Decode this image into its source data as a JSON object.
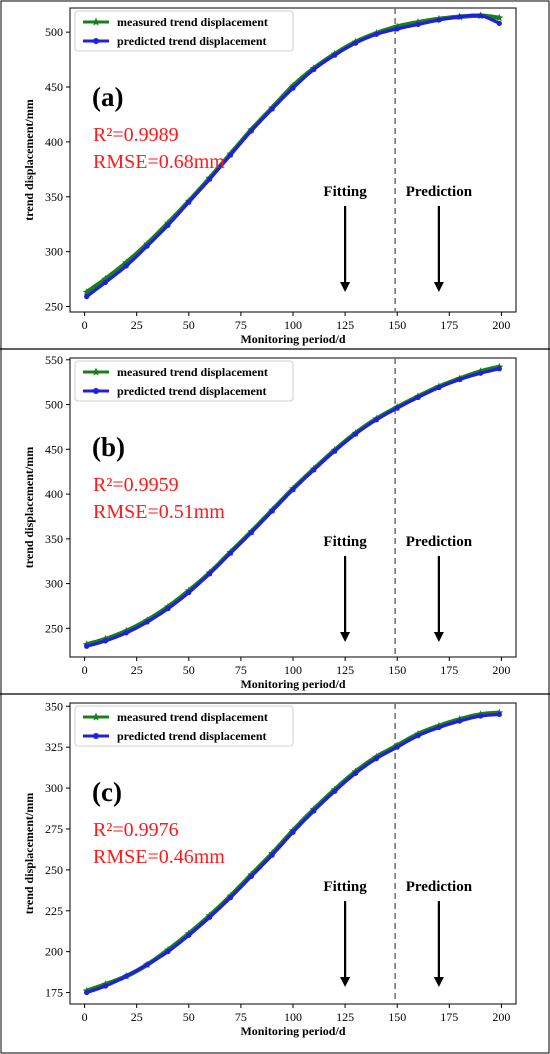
{
  "figure": {
    "panels": [
      {
        "letter": "(a)",
        "r2": "R²=0.9989",
        "rmse": "RMSE=0.68mm",
        "fitting_label": "Fitting",
        "prediction_label": "Prediction"
      },
      {
        "letter": "(b)",
        "r2": "R²=0.9959",
        "rmse": "RMSE=0.51mm",
        "fitting_label": "Fitting",
        "prediction_label": "Prediction"
      },
      {
        "letter": "(c)",
        "r2": "R²=0.9976",
        "rmse": "RMSE=0.46mm",
        "fitting_label": "Fitting",
        "prediction_label": "Prediction"
      }
    ]
  },
  "chart_data": [
    {
      "type": "line",
      "xlabel": "Monitoring period/d",
      "ylabel": "trend displacement/mm",
      "xlim": [
        -7,
        207
      ],
      "ylim": [
        245,
        522
      ],
      "xticks": [
        0,
        25,
        50,
        75,
        100,
        125,
        150,
        175,
        200
      ],
      "yticks": [
        250,
        300,
        350,
        400,
        450,
        500
      ],
      "split_x": 149,
      "fitting_arrow_x": 125,
      "prediction_arrow_x": 170,
      "legend_position": "top-left",
      "series": [
        {
          "name": "measured trend displacement",
          "color": "#1a7f1a",
          "marker": "star",
          "x": [
            1,
            10,
            20,
            30,
            40,
            50,
            60,
            70,
            80,
            90,
            100,
            110,
            120,
            130,
            140,
            150,
            160,
            170,
            180,
            190,
            199
          ],
          "values": [
            263,
            275,
            290,
            307,
            326,
            346,
            367,
            389,
            411,
            431,
            451,
            467,
            480,
            491,
            499,
            505,
            509,
            512,
            514,
            515,
            513
          ]
        },
        {
          "name": "predicted trend displacement",
          "color": "#1f1fdd",
          "marker": "dot",
          "x": [
            1,
            10,
            20,
            30,
            40,
            50,
            60,
            70,
            80,
            90,
            100,
            110,
            120,
            130,
            140,
            150,
            160,
            170,
            180,
            190,
            199
          ],
          "values": [
            259,
            272,
            287,
            305,
            324,
            345,
            366,
            388,
            410,
            430,
            449,
            466,
            479,
            490,
            498,
            503,
            507,
            511,
            514,
            515,
            508
          ]
        }
      ]
    },
    {
      "type": "line",
      "xlabel": "Monitoring period/d",
      "ylabel": "trend displacement/mm",
      "xlim": [
        -7,
        207
      ],
      "ylim": [
        218,
        552
      ],
      "xticks": [
        0,
        25,
        50,
        75,
        100,
        125,
        150,
        175,
        200
      ],
      "yticks": [
        250,
        300,
        350,
        400,
        450,
        500,
        550
      ],
      "split_x": 149,
      "fitting_arrow_x": 125,
      "prediction_arrow_x": 170,
      "legend_position": "top-left",
      "series": [
        {
          "name": "measured trend displacement",
          "color": "#1a7f1a",
          "marker": "star",
          "x": [
            1,
            10,
            20,
            30,
            40,
            50,
            60,
            70,
            80,
            90,
            100,
            110,
            120,
            130,
            140,
            150,
            160,
            170,
            180,
            190,
            199
          ],
          "values": [
            232,
            238,
            247,
            259,
            274,
            292,
            312,
            335,
            358,
            382,
            406,
            428,
            449,
            468,
            484,
            497,
            509,
            520,
            529,
            537,
            542
          ]
        },
        {
          "name": "predicted trend displacement",
          "color": "#1f1fdd",
          "marker": "dot",
          "x": [
            1,
            10,
            20,
            30,
            40,
            50,
            60,
            70,
            80,
            90,
            100,
            110,
            120,
            130,
            140,
            150,
            160,
            170,
            180,
            190,
            199
          ],
          "values": [
            230,
            236,
            245,
            257,
            272,
            290,
            311,
            334,
            357,
            381,
            405,
            427,
            448,
            467,
            483,
            496,
            508,
            519,
            528,
            535,
            540
          ]
        }
      ]
    },
    {
      "type": "line",
      "xlabel": "Monitoring period/d",
      "ylabel": "trend displacement/mm",
      "xlim": [
        -7,
        207
      ],
      "ylim": [
        168,
        352
      ],
      "xticks": [
        0,
        25,
        50,
        75,
        100,
        125,
        150,
        175,
        200
      ],
      "yticks": [
        175,
        200,
        225,
        250,
        275,
        300,
        325,
        350
      ],
      "split_x": 149,
      "fitting_arrow_x": 125,
      "prediction_arrow_x": 170,
      "legend_position": "top-left",
      "series": [
        {
          "name": "measured trend displacement",
          "color": "#1a7f1a",
          "marker": "star",
          "x": [
            1,
            10,
            20,
            30,
            40,
            50,
            60,
            70,
            80,
            90,
            100,
            110,
            120,
            130,
            140,
            150,
            160,
            170,
            180,
            190,
            199
          ],
          "values": [
            176,
            180,
            185,
            192,
            201,
            211,
            222,
            234,
            247,
            260,
            274,
            287,
            299,
            310,
            319,
            326,
            333,
            338,
            342,
            345,
            346
          ]
        },
        {
          "name": "predicted trend displacement",
          "color": "#1f1fdd",
          "marker": "dot",
          "x": [
            1,
            10,
            20,
            30,
            40,
            50,
            60,
            70,
            80,
            90,
            100,
            110,
            120,
            130,
            140,
            150,
            160,
            170,
            180,
            190,
            199
          ],
          "values": [
            175,
            179,
            185,
            192,
            200,
            210,
            221,
            233,
            246,
            259,
            273,
            286,
            298,
            309,
            318,
            325,
            332,
            337,
            341,
            344,
            345
          ]
        }
      ]
    }
  ]
}
